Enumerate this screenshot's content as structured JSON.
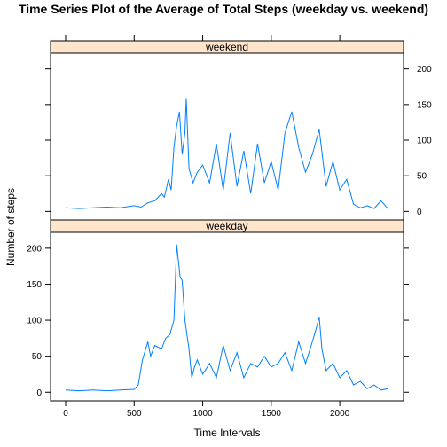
{
  "chart_data": {
    "type": "line",
    "title": "Time Series Plot of the Average of Total Steps (weekday vs. weekend)",
    "xlabel": "Time Intervals",
    "ylabel": "Number of steps",
    "xlim": [
      -110,
      2465
    ],
    "x_ticks": [
      0,
      500,
      1000,
      1500,
      2000
    ],
    "line_color": "#0080ff",
    "strip_color": "#ffe5cc",
    "panels": [
      {
        "name": "weekend",
        "ylim": [
          -12,
          222
        ],
        "y_ticks": [
          0,
          50,
          100,
          150,
          200
        ],
        "series": {
          "x": [
            0,
            100,
            200,
            300,
            400,
            500,
            550,
            600,
            650,
            700,
            720,
            750,
            770,
            790,
            810,
            830,
            850,
            870,
            880,
            900,
            930,
            960,
            1000,
            1050,
            1100,
            1150,
            1200,
            1250,
            1300,
            1350,
            1400,
            1450,
            1500,
            1550,
            1600,
            1650,
            1700,
            1750,
            1800,
            1850,
            1900,
            1950,
            2000,
            2050,
            2100,
            2150,
            2200,
            2250,
            2300,
            2355
          ],
          "y": [
            5,
            4,
            5,
            6,
            5,
            8,
            6,
            12,
            15,
            25,
            20,
            45,
            30,
            90,
            120,
            140,
            80,
            110,
            158,
            60,
            40,
            55,
            65,
            40,
            95,
            30,
            110,
            35,
            85,
            25,
            95,
            40,
            70,
            30,
            110,
            140,
            90,
            55,
            80,
            115,
            35,
            70,
            30,
            45,
            10,
            5,
            8,
            4,
            15,
            3
          ]
        }
      },
      {
        "name": "weekday",
        "ylim": [
          -12,
          222
        ],
        "y_ticks": [
          0,
          50,
          100,
          150,
          200
        ],
        "series": {
          "x": [
            0,
            100,
            200,
            300,
            400,
            500,
            530,
            560,
            600,
            620,
            650,
            700,
            730,
            760,
            790,
            810,
            835,
            850,
            870,
            900,
            920,
            940,
            960,
            1000,
            1050,
            1100,
            1150,
            1200,
            1250,
            1300,
            1350,
            1400,
            1450,
            1500,
            1550,
            1600,
            1650,
            1700,
            1750,
            1800,
            1830,
            1850,
            1870,
            1900,
            1950,
            2000,
            2050,
            2100,
            2150,
            2200,
            2250,
            2300,
            2355
          ],
          "y": [
            3,
            2,
            3,
            2,
            3,
            4,
            10,
            45,
            70,
            50,
            65,
            60,
            75,
            80,
            100,
            205,
            160,
            155,
            100,
            60,
            20,
            35,
            45,
            25,
            40,
            20,
            65,
            30,
            55,
            20,
            40,
            35,
            50,
            35,
            40,
            55,
            30,
            70,
            40,
            70,
            90,
            105,
            60,
            30,
            40,
            20,
            30,
            10,
            15,
            5,
            10,
            3,
            5
          ]
        }
      }
    ]
  }
}
